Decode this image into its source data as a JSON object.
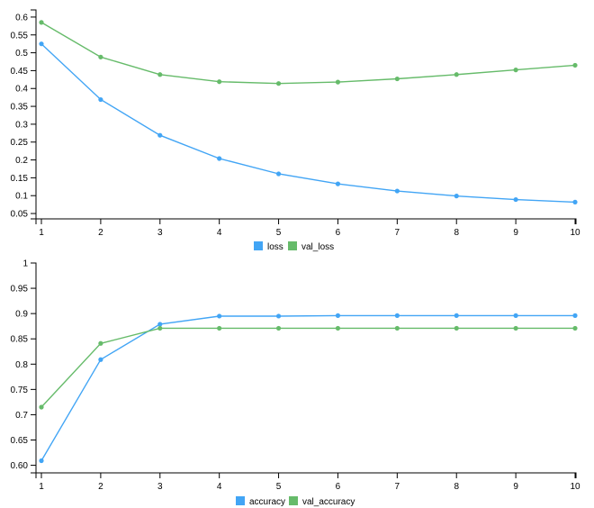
{
  "chart_data": [
    {
      "type": "line",
      "title": "",
      "xlabel": "",
      "ylabel": "",
      "x": [
        1,
        2,
        3,
        4,
        5,
        6,
        7,
        8,
        9,
        10
      ],
      "xlim": [
        1,
        10
      ],
      "ylim": [
        0.035,
        0.62
      ],
      "yticks": [
        0.05,
        0.1,
        0.15,
        0.2,
        0.25,
        0.3,
        0.35,
        0.4,
        0.45,
        0.5,
        0.55,
        0.6
      ],
      "yticklabels": [
        "0.05",
        "0.1",
        "0.15",
        "0.2",
        "0.25",
        "0.3",
        "0.35",
        "0.4",
        "0.45",
        "0.5",
        "0.55",
        "0.6"
      ],
      "xticklabels": [
        "1",
        "2",
        "3",
        "4",
        "5",
        "6",
        "7",
        "8",
        "9",
        "10"
      ],
      "grid": false,
      "legend": "bottom",
      "series": [
        {
          "name": "loss",
          "color": "#42a5f5",
          "values": [
            0.525,
            0.369,
            0.269,
            0.204,
            0.161,
            0.133,
            0.113,
            0.099,
            0.089,
            0.082
          ]
        },
        {
          "name": "val_loss",
          "color": "#66bb6a",
          "values": [
            0.585,
            0.488,
            0.439,
            0.419,
            0.414,
            0.418,
            0.427,
            0.439,
            0.452,
            0.465
          ]
        }
      ]
    },
    {
      "type": "line",
      "title": "",
      "xlabel": "",
      "ylabel": "",
      "x": [
        1,
        2,
        3,
        4,
        5,
        6,
        7,
        8,
        9,
        10
      ],
      "xlim": [
        1,
        10
      ],
      "ylim": [
        0.585,
        1.0
      ],
      "yticks": [
        0.6,
        0.65,
        0.7,
        0.75,
        0.8,
        0.85,
        0.9,
        0.95,
        1.0
      ],
      "yticklabels": [
        "0.60",
        "0.65",
        "0.7",
        "0.75",
        "0.8",
        "0.85",
        "0.9",
        "0.95",
        "1"
      ],
      "xticklabels": [
        "1",
        "2",
        "3",
        "4",
        "5",
        "6",
        "7",
        "8",
        "9",
        "10"
      ],
      "grid": false,
      "legend": "bottom",
      "series": [
        {
          "name": "accuracy",
          "color": "#42a5f5",
          "values": [
            0.609,
            0.809,
            0.879,
            0.895,
            0.895,
            0.896,
            0.896,
            0.896,
            0.896,
            0.896
          ]
        },
        {
          "name": "val_accuracy",
          "color": "#66bb6a",
          "values": [
            0.715,
            0.841,
            0.871,
            0.871,
            0.871,
            0.871,
            0.871,
            0.871,
            0.871,
            0.871
          ]
        }
      ]
    }
  ]
}
